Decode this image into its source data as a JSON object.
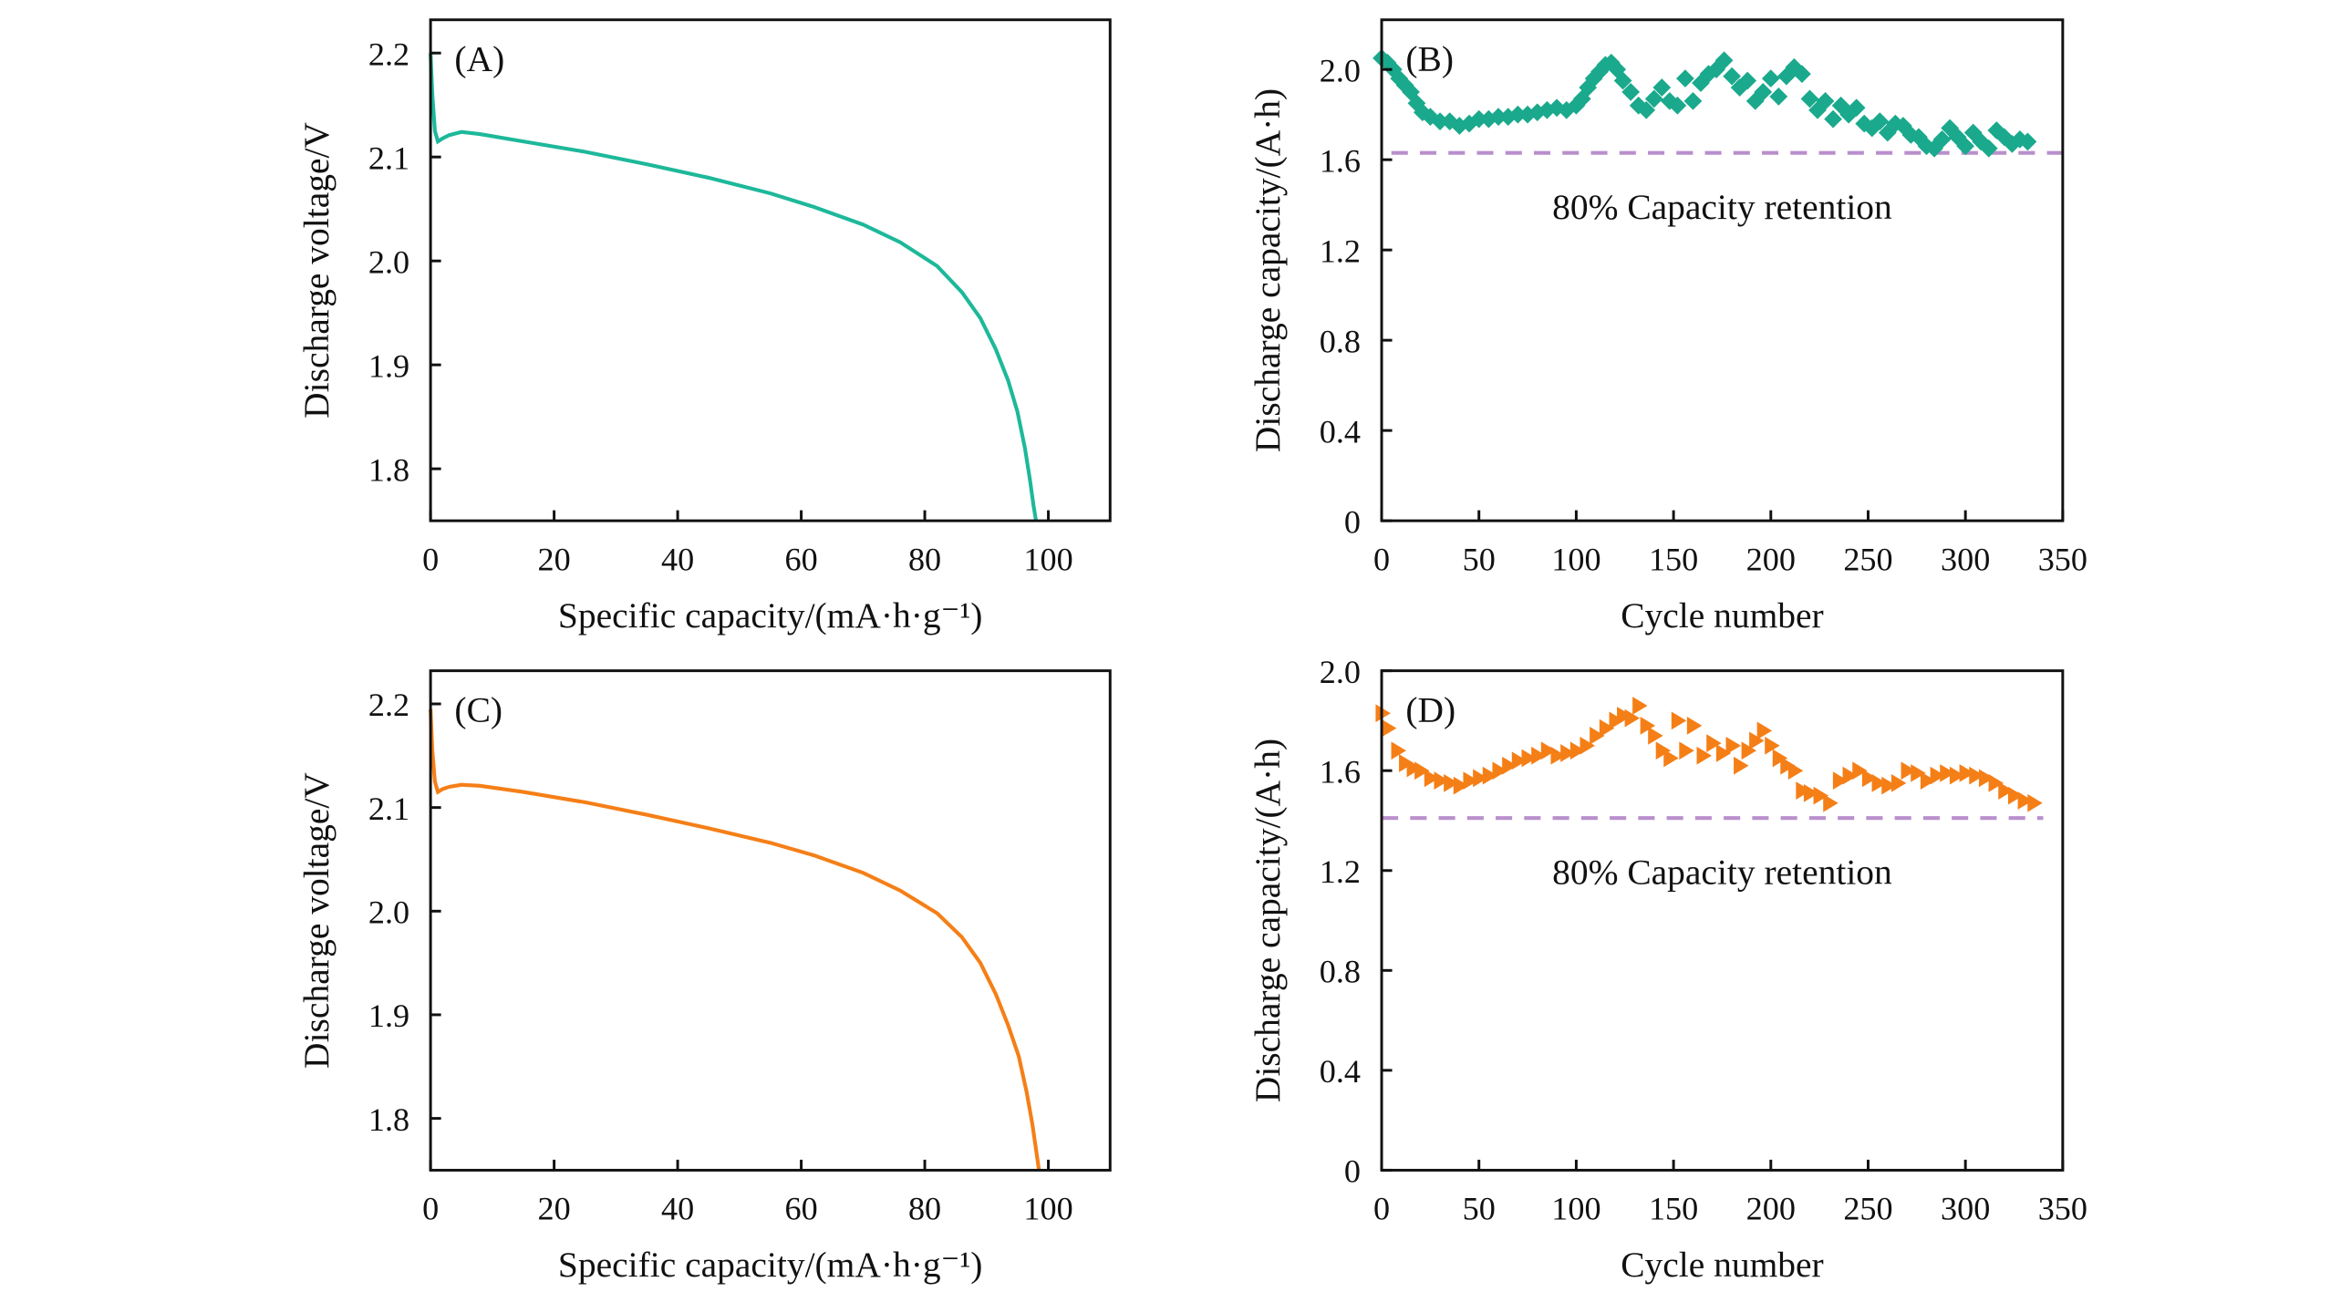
{
  "chart_data": [
    {
      "id": "A",
      "panel_label": "(A)",
      "type": "line",
      "xlabel": "Specific capacity/(mA·h·g⁻¹)",
      "ylabel": "Discharge voltage/V",
      "xlim": [
        0,
        110
      ],
      "ylim": [
        1.75,
        2.232
      ],
      "xticks": [
        0,
        20,
        40,
        60,
        80,
        100
      ],
      "yticks": [
        1.8,
        1.9,
        2.0,
        2.1,
        2.2
      ],
      "ytick_labels": [
        "1.8",
        "1.9",
        "2.0",
        "2.1",
        "2.2"
      ],
      "color": "#1db89a",
      "x": [
        0,
        0.3,
        0.7,
        1.2,
        2,
        3,
        5,
        8,
        15,
        25,
        35,
        45,
        55,
        62,
        70,
        76,
        82,
        86,
        89,
        91.5,
        93.5,
        95,
        96.2,
        97,
        97.6,
        98.0
      ],
      "y": [
        2.2,
        2.16,
        2.125,
        2.115,
        2.118,
        2.121,
        2.124,
        2.122,
        2.115,
        2.105,
        2.093,
        2.08,
        2.065,
        2.052,
        2.035,
        2.018,
        1.995,
        1.97,
        1.945,
        1.915,
        1.885,
        1.855,
        1.82,
        1.79,
        1.765,
        1.75
      ]
    },
    {
      "id": "B",
      "panel_label": "(B)",
      "type": "scatter",
      "xlabel": "Cycle number",
      "ylabel": "Discharge capacity/(A·h)",
      "xlim": [
        0,
        350
      ],
      "ylim": [
        0,
        2.22
      ],
      "xticks": [
        0,
        50,
        100,
        150,
        200,
        250,
        300,
        350
      ],
      "yticks": [
        0,
        0.4,
        0.8,
        1.2,
        1.6,
        2.0
      ],
      "ytick_labels": [
        "0",
        "0.4",
        "0.8",
        "1.2",
        "1.6",
        "2.0"
      ],
      "color": "#1aa98c",
      "marker": "diamond",
      "reference_line": {
        "y": 1.63,
        "x": [
          5,
          350
        ],
        "color": "#b98fcc",
        "label": "80% Capacity retention"
      },
      "x": [
        0,
        3,
        6,
        9,
        12,
        15,
        18,
        21,
        25,
        30,
        35,
        40,
        45,
        50,
        55,
        60,
        65,
        70,
        75,
        80,
        85,
        90,
        95,
        100,
        103,
        106,
        109,
        112,
        115,
        118,
        121,
        124,
        128,
        132,
        136,
        140,
        144,
        148,
        152,
        156,
        160,
        164,
        168,
        172,
        176,
        180,
        184,
        188,
        192,
        196,
        200,
        204,
        208,
        212,
        216,
        220,
        224,
        228,
        232,
        236,
        240,
        244,
        248,
        252,
        256,
        260,
        264,
        268,
        272,
        276,
        280,
        284,
        288,
        292,
        296,
        300,
        304,
        308,
        312,
        316,
        320,
        324,
        328,
        332
      ],
      "y": [
        2.05,
        2.03,
        2.0,
        1.96,
        1.93,
        1.9,
        1.85,
        1.81,
        1.79,
        1.77,
        1.77,
        1.75,
        1.76,
        1.78,
        1.78,
        1.79,
        1.79,
        1.8,
        1.8,
        1.81,
        1.82,
        1.83,
        1.82,
        1.84,
        1.87,
        1.92,
        1.96,
        1.99,
        2.02,
        2.03,
        2.0,
        1.95,
        1.9,
        1.84,
        1.82,
        1.87,
        1.92,
        1.86,
        1.84,
        1.96,
        1.86,
        1.94,
        1.98,
        2.0,
        2.04,
        1.97,
        1.92,
        1.95,
        1.86,
        1.9,
        1.96,
        1.88,
        1.97,
        2.01,
        1.98,
        1.87,
        1.82,
        1.86,
        1.78,
        1.84,
        1.8,
        1.83,
        1.76,
        1.74,
        1.77,
        1.72,
        1.76,
        1.75,
        1.71,
        1.7,
        1.66,
        1.65,
        1.69,
        1.74,
        1.7,
        1.66,
        1.72,
        1.68,
        1.65,
        1.73,
        1.7,
        1.67,
        1.69,
        1.68
      ]
    },
    {
      "id": "C",
      "panel_label": "(C)",
      "type": "line",
      "xlabel": "Specific capacity/(mA·h·g⁻¹)",
      "ylabel": "Discharge voltage/V",
      "xlim": [
        0,
        110
      ],
      "ylim": [
        1.75,
        2.232
      ],
      "xticks": [
        0,
        20,
        40,
        60,
        80,
        100
      ],
      "yticks": [
        1.8,
        1.9,
        2.0,
        2.1,
        2.2
      ],
      "ytick_labels": [
        "1.8",
        "1.9",
        "2.0",
        "2.1",
        "2.2"
      ],
      "color": "#f57f17",
      "x": [
        0,
        0.3,
        0.7,
        1.2,
        2,
        3,
        5,
        8,
        15,
        25,
        35,
        45,
        55,
        62,
        70,
        76,
        82,
        86,
        89,
        91.5,
        93.5,
        95.2,
        96.5,
        97.4,
        98.0,
        98.5
      ],
      "y": [
        2.195,
        2.155,
        2.125,
        2.115,
        2.118,
        2.12,
        2.122,
        2.121,
        2.115,
        2.105,
        2.093,
        2.08,
        2.066,
        2.054,
        2.037,
        2.02,
        1.998,
        1.975,
        1.95,
        1.92,
        1.89,
        1.86,
        1.825,
        1.795,
        1.77,
        1.75
      ]
    },
    {
      "id": "D",
      "panel_label": "(D)",
      "type": "scatter",
      "xlabel": "Cycle number",
      "ylabel": "Discharge capacity/(A·h)",
      "xlim": [
        0,
        350
      ],
      "ylim": [
        0,
        2.0
      ],
      "xticks": [
        0,
        50,
        100,
        150,
        200,
        250,
        300,
        350
      ],
      "yticks": [
        0,
        0.4,
        0.8,
        1.2,
        1.6,
        2.0
      ],
      "ytick_labels": [
        "0",
        "0.4",
        "0.8",
        "1.2",
        "1.6",
        "2.0"
      ],
      "color": "#f57f17",
      "marker": "triangle-right",
      "reference_line": {
        "y": 1.41,
        "x": [
          0,
          340
        ],
        "color": "#b98fcc",
        "label": "80% Capacity retention"
      },
      "x": [
        0,
        3,
        8,
        12,
        16,
        20,
        25,
        30,
        35,
        40,
        45,
        50,
        55,
        60,
        65,
        70,
        75,
        80,
        85,
        90,
        95,
        100,
        105,
        110,
        115,
        120,
        124,
        128,
        132,
        136,
        140,
        144,
        148,
        152,
        156,
        160,
        165,
        170,
        175,
        180,
        184,
        188,
        192,
        196,
        200,
        204,
        208,
        212,
        216,
        220,
        225,
        230,
        235,
        240,
        245,
        250,
        255,
        260,
        265,
        270,
        275,
        280,
        285,
        290,
        295,
        300,
        305,
        310,
        315,
        320,
        325,
        330,
        335
      ],
      "y": [
        1.83,
        1.77,
        1.68,
        1.63,
        1.61,
        1.6,
        1.57,
        1.56,
        1.55,
        1.54,
        1.56,
        1.57,
        1.58,
        1.6,
        1.62,
        1.64,
        1.65,
        1.66,
        1.68,
        1.66,
        1.67,
        1.68,
        1.7,
        1.74,
        1.77,
        1.8,
        1.82,
        1.81,
        1.86,
        1.78,
        1.74,
        1.68,
        1.65,
        1.8,
        1.68,
        1.78,
        1.66,
        1.71,
        1.67,
        1.7,
        1.62,
        1.68,
        1.72,
        1.76,
        1.7,
        1.65,
        1.62,
        1.6,
        1.52,
        1.51,
        1.5,
        1.47,
        1.56,
        1.58,
        1.6,
        1.57,
        1.55,
        1.54,
        1.55,
        1.6,
        1.59,
        1.56,
        1.58,
        1.59,
        1.58,
        1.59,
        1.58,
        1.57,
        1.55,
        1.52,
        1.5,
        1.48,
        1.47
      ]
    }
  ]
}
